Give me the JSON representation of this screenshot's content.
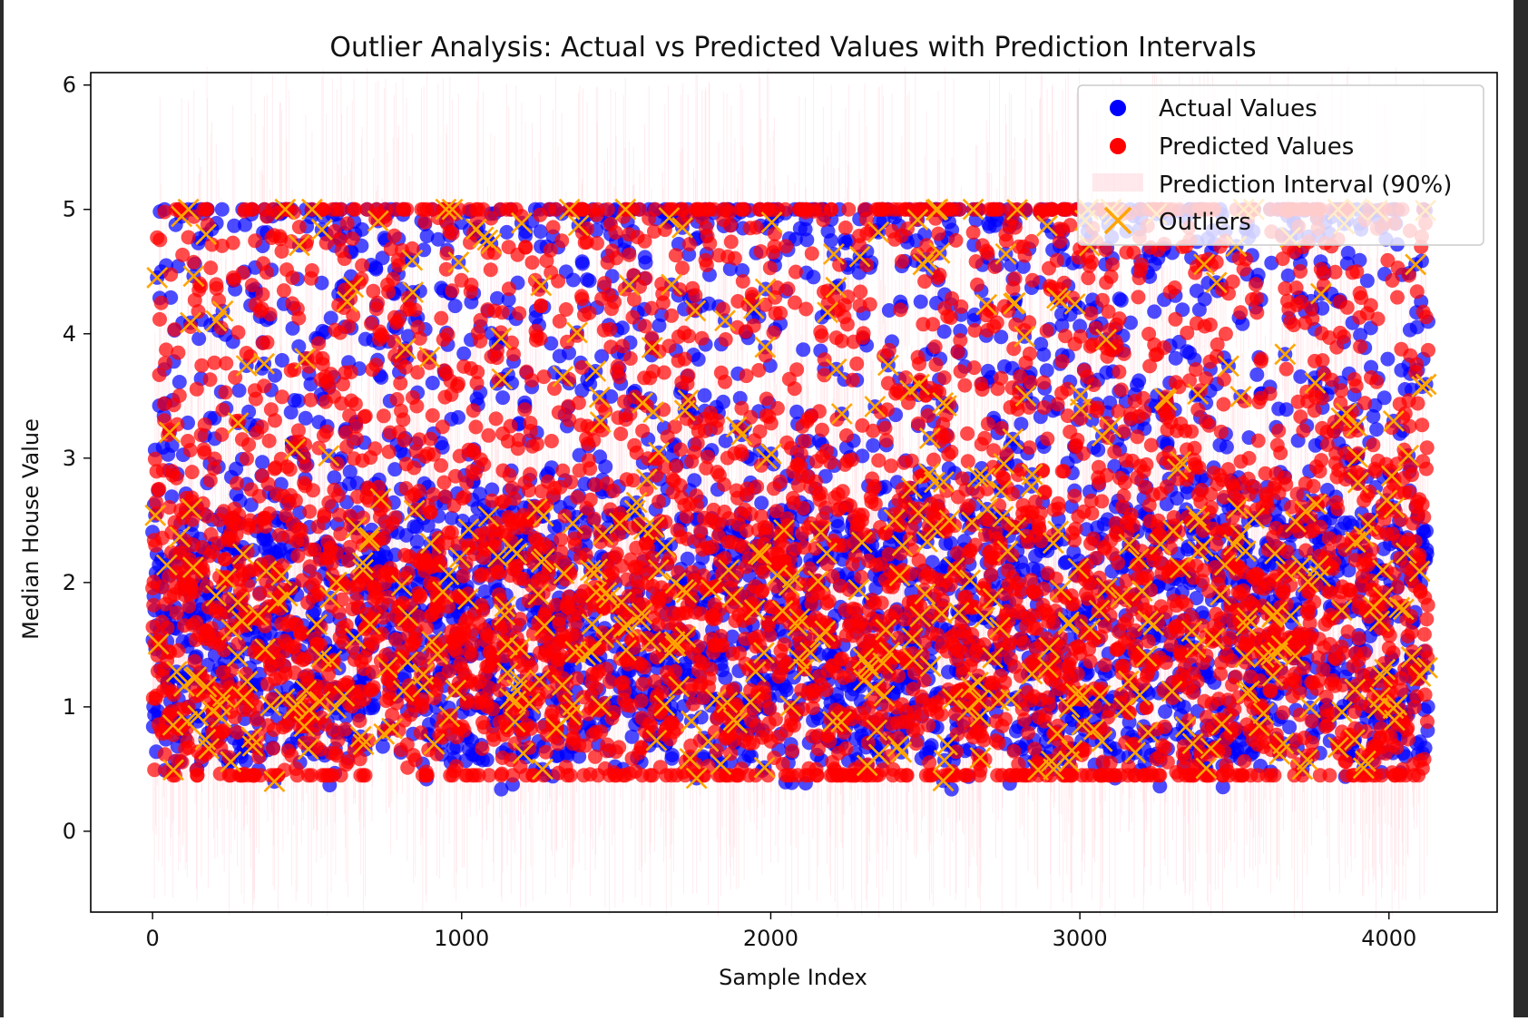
{
  "chart_data": {
    "type": "scatter",
    "title": "Outlier Analysis: Actual vs Predicted Values with Prediction Intervals",
    "xlabel": "Sample Index",
    "ylabel": "Median House Value",
    "xlim": [
      -200,
      4350
    ],
    "ylim": [
      -0.65,
      6.1
    ],
    "x_ticks": [
      {
        "value": 0,
        "label": "0"
      },
      {
        "value": 1000,
        "label": "1000"
      },
      {
        "value": 2000,
        "label": "2000"
      },
      {
        "value": 3000,
        "label": "3000"
      },
      {
        "value": 4000,
        "label": "4000"
      }
    ],
    "y_ticks": [
      {
        "value": 0,
        "label": "0"
      },
      {
        "value": 1,
        "label": "1"
      },
      {
        "value": 2,
        "label": "2"
      },
      {
        "value": 3,
        "label": "3"
      },
      {
        "value": 4,
        "label": "4"
      },
      {
        "value": 5,
        "label": "5"
      },
      {
        "value": 6,
        "label": "6"
      }
    ],
    "grid": false,
    "legend_position": "top-right",
    "series": [
      {
        "name": "Actual Values",
        "kind": "scatter-circle",
        "color": "#0000ff",
        "alpha": 0.7
      },
      {
        "name": "Predicted Values",
        "kind": "scatter-circle",
        "color": "#ff0000",
        "alpha": 0.7
      },
      {
        "name": "Prediction Interval (90%)",
        "kind": "vertical-band",
        "color": "#ffc0cb",
        "alpha": 0.3
      },
      {
        "name": "Outliers",
        "kind": "scatter-x",
        "color": "#ffa500"
      }
    ],
    "sample_count": 4128,
    "value_cap": 5.0,
    "typical_interval_halfwidth": 0.9
  }
}
